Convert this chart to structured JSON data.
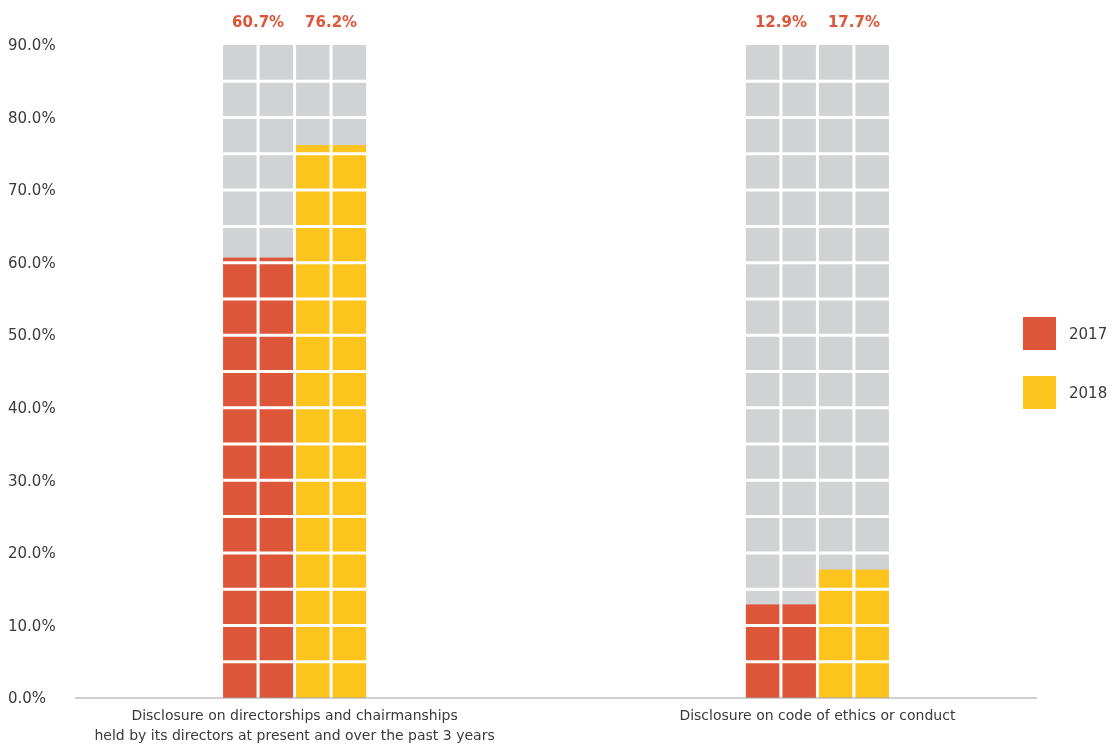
{
  "chart_data": {
    "type": "bar",
    "categories": [
      "Disclosure on directorships and chairmanships held by its directors at present and over the past 3 years",
      "Disclosure on code of ethics or conduct"
    ],
    "series": [
      {
        "name": "2017",
        "color": "#de563a",
        "values": [
          60.7,
          12.9
        ]
      },
      {
        "name": "2018",
        "color": "#fdc41d",
        "values": [
          76.2,
          17.7
        ]
      }
    ],
    "ylim": [
      0,
      90
    ],
    "yticks": [
      {
        "value": 0,
        "label": "0.0%"
      },
      {
        "value": 10,
        "label": "10.0%"
      },
      {
        "value": 20,
        "label": "20.0%"
      },
      {
        "value": 30,
        "label": "30.0%"
      },
      {
        "value": 40,
        "label": "40.0%"
      },
      {
        "value": 50,
        "label": "50.0%"
      },
      {
        "value": 60,
        "label": "60.0%"
      },
      {
        "value": 70,
        "label": "70.0%"
      },
      {
        "value": 80,
        "label": "80.0%"
      },
      {
        "value": 90,
        "label": "90.0%"
      }
    ],
    "value_labels": [
      [
        "60.7%",
        "12.9%"
      ],
      [
        "76.2%",
        "17.7%"
      ]
    ],
    "grid": false,
    "legend": "right"
  }
}
